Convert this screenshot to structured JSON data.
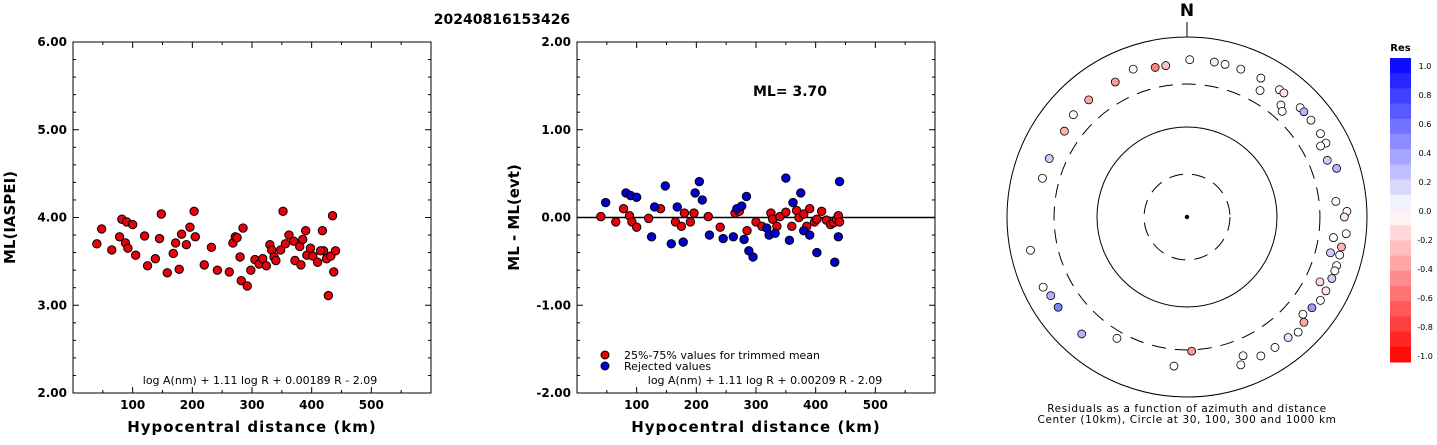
{
  "title": "20240816153426",
  "chart_data": [
    {
      "type": "scatter",
      "ylabel": "ML(IASPEI)",
      "xlabel": "Hypocentral distance (km)",
      "xlim": [
        0,
        600
      ],
      "ylim": [
        2.0,
        6.0
      ],
      "xticks": [
        "100",
        "200",
        "300",
        "400",
        "500"
      ],
      "yticks": [
        "2.00",
        "3.00",
        "4.00",
        "5.00",
        "6.00"
      ],
      "formula": "log A(nm) + 1.11 log R + 0.00189 R - 2.09",
      "series": [
        {
          "color": "#e8000b",
          "points": [
            [
              40,
              3.7
            ],
            [
              48,
              3.87
            ],
            [
              65,
              3.63
            ],
            [
              78,
              3.78
            ],
            [
              82,
              3.98
            ],
            [
              88,
              3.71
            ],
            [
              90,
              3.95
            ],
            [
              92,
              3.65
            ],
            [
              100,
              3.92
            ],
            [
              105,
              3.57
            ],
            [
              120,
              3.79
            ],
            [
              125,
              3.45
            ],
            [
              138,
              3.53
            ],
            [
              145,
              3.76
            ],
            [
              148,
              4.04
            ],
            [
              158,
              3.37
            ],
            [
              168,
              3.59
            ],
            [
              172,
              3.71
            ],
            [
              178,
              3.41
            ],
            [
              182,
              3.81
            ],
            [
              190,
              3.69
            ],
            [
              196,
              3.89
            ],
            [
              203,
              4.07
            ],
            [
              205,
              3.78
            ],
            [
              220,
              3.46
            ],
            [
              232,
              3.66
            ],
            [
              242,
              3.4
            ],
            [
              262,
              3.38
            ],
            [
              268,
              3.71
            ],
            [
              272,
              3.78
            ],
            [
              275,
              3.77
            ],
            [
              280,
              3.55
            ],
            [
              285,
              3.88
            ],
            [
              282,
              3.28
            ],
            [
              292,
              3.22
            ],
            [
              298,
              3.4
            ],
            [
              305,
              3.52
            ],
            [
              312,
              3.47
            ],
            [
              318,
              3.53
            ],
            [
              324,
              3.45
            ],
            [
              330,
              3.69
            ],
            [
              333,
              3.63
            ],
            [
              337,
              3.55
            ],
            [
              340,
              3.51
            ],
            [
              348,
              3.63
            ],
            [
              352,
              4.07
            ],
            [
              356,
              3.7
            ],
            [
              362,
              3.8
            ],
            [
              370,
              3.73
            ],
            [
              372,
              3.51
            ],
            [
              380,
              3.67
            ],
            [
              382,
              3.46
            ],
            [
              385,
              3.75
            ],
            [
              390,
              3.85
            ],
            [
              392,
              3.57
            ],
            [
              398,
              3.65
            ],
            [
              402,
              3.56
            ],
            [
              410,
              3.49
            ],
            [
              418,
              3.85
            ],
            [
              420,
              3.62
            ],
            [
              425,
              3.53
            ],
            [
              428,
              3.11
            ],
            [
              432,
              3.56
            ],
            [
              435,
              4.02
            ],
            [
              437,
              3.38
            ],
            [
              440,
              3.62
            ],
            [
              415,
              3.62
            ]
          ]
        }
      ]
    },
    {
      "type": "scatter",
      "ylabel": "ML - ML(evt)",
      "xlabel": "Hypocentral distance (km)",
      "xlim": [
        0,
        600
      ],
      "ylim": [
        -2.0,
        2.0
      ],
      "xticks": [
        "100",
        "200",
        "300",
        "400",
        "500"
      ],
      "yticks": [
        "-2.00",
        "-1.00",
        "0.00",
        "1.00",
        "2.00"
      ],
      "annotation": "ML= 3.70",
      "formula": "log A(nm) + 1.11 log R + 0.00209 R - 2.09",
      "legend": [
        {
          "label": "25%-75% values for trimmed mean",
          "color": "#e8000b"
        },
        {
          "label": "Rejected values",
          "color": "#0000d0"
        }
      ],
      "series": [
        {
          "name": "25%-75% values for trimmed mean",
          "color": "#e8000b",
          "points": [
            [
              40,
              0.01
            ],
            [
              65,
              -0.05
            ],
            [
              78,
              0.1
            ],
            [
              88,
              0.02
            ],
            [
              92,
              -0.05
            ],
            [
              100,
              -0.11
            ],
            [
              120,
              -0.01
            ],
            [
              140,
              0.1
            ],
            [
              165,
              -0.05
            ],
            [
              175,
              -0.1
            ],
            [
              180,
              0.05
            ],
            [
              190,
              -0.05
            ],
            [
              196,
              0.05
            ],
            [
              220,
              0.01
            ],
            [
              240,
              -0.11
            ],
            [
              265,
              0.05
            ],
            [
              272,
              0.07
            ],
            [
              285,
              -0.15
            ],
            [
              300,
              -0.05
            ],
            [
              310,
              -0.1
            ],
            [
              325,
              0.05
            ],
            [
              328,
              -0.02
            ],
            [
              335,
              -0.1
            ],
            [
              340,
              0.01
            ],
            [
              350,
              0.06
            ],
            [
              360,
              -0.1
            ],
            [
              368,
              0.08
            ],
            [
              372,
              0.0
            ],
            [
              380,
              0.04
            ],
            [
              385,
              -0.1
            ],
            [
              390,
              0.1
            ],
            [
              398,
              -0.05
            ],
            [
              402,
              -0.02
            ],
            [
              410,
              0.07
            ],
            [
              418,
              -0.03
            ],
            [
              425,
              -0.08
            ],
            [
              430,
              -0.06
            ],
            [
              435,
              -0.02
            ],
            [
              438,
              0.02
            ],
            [
              440,
              -0.05
            ]
          ]
        },
        {
          "name": "Rejected values",
          "color": "#0000d0",
          "points": [
            [
              48,
              0.17
            ],
            [
              82,
              0.28
            ],
            [
              90,
              0.25
            ],
            [
              100,
              0.23
            ],
            [
              125,
              -0.22
            ],
            [
              130,
              0.12
            ],
            [
              148,
              0.36
            ],
            [
              158,
              -0.3
            ],
            [
              168,
              0.12
            ],
            [
              178,
              -0.28
            ],
            [
              198,
              0.28
            ],
            [
              205,
              0.41
            ],
            [
              210,
              0.2
            ],
            [
              222,
              -0.2
            ],
            [
              245,
              -0.24
            ],
            [
              262,
              -0.22
            ],
            [
              268,
              0.1
            ],
            [
              276,
              0.13
            ],
            [
              280,
              -0.25
            ],
            [
              284,
              0.24
            ],
            [
              288,
              -0.38
            ],
            [
              295,
              -0.45
            ],
            [
              318,
              -0.12
            ],
            [
              322,
              -0.2
            ],
            [
              332,
              -0.18
            ],
            [
              350,
              0.45
            ],
            [
              356,
              -0.26
            ],
            [
              362,
              0.17
            ],
            [
              375,
              0.28
            ],
            [
              380,
              -0.15
            ],
            [
              390,
              -0.2
            ],
            [
              402,
              -0.4
            ],
            [
              432,
              -0.51
            ],
            [
              438,
              -0.22
            ],
            [
              440,
              0.41
            ]
          ]
        }
      ]
    },
    {
      "type": "scatter",
      "polar": true,
      "north_label": "N",
      "caption": [
        "Residuals as a function of azimuth and distance",
        "Center (10km), Circle at 30, 100, 300 and 1000 km"
      ],
      "points": [
        [
          1,
          0.0
        ],
        [
          10,
          0.05
        ],
        [
          14,
          0.0
        ],
        [
          20,
          0.0
        ],
        [
          28,
          0.0
        ],
        [
          36,
          0.0
        ],
        [
          38,
          -0.1
        ],
        [
          46,
          0.0
        ],
        [
          48,
          0.3
        ],
        [
          52,
          0.0
        ],
        [
          58,
          0.0
        ],
        [
          62,
          0.0
        ],
        [
          72,
          0.3
        ],
        [
          84,
          0.0
        ],
        [
          88,
          0.0
        ],
        [
          90,
          -0.1
        ],
        [
          96,
          0.0
        ],
        [
          101,
          -0.3
        ],
        [
          104,
          0.0
        ],
        [
          108,
          0.0
        ],
        [
          113,
          0.2
        ],
        [
          122,
          0.0
        ],
        [
          126,
          0.4
        ],
        [
          132,
          -0.35
        ],
        [
          140,
          0.1
        ],
        [
          152,
          0.0
        ],
        [
          160,
          0.0
        ],
        [
          178,
          -0.4
        ],
        [
          185,
          0.0
        ],
        [
          210,
          0.0
        ],
        [
          222,
          0.3
        ],
        [
          235,
          0.5
        ],
        [
          240,
          0.3
        ],
        [
          244,
          0.0
        ],
        [
          258,
          0.0
        ],
        [
          285,
          0.0
        ],
        [
          293,
          0.2
        ],
        [
          305,
          -0.3
        ],
        [
          312,
          0.0
        ],
        [
          320,
          -0.35
        ],
        [
          332,
          -0.4
        ],
        [
          340,
          0.0
        ],
        [
          348,
          -0.5
        ],
        [
          352,
          -0.25
        ],
        [
          62,
          0.0
        ],
        [
          68,
          0.2
        ],
        [
          110,
          0.0
        ],
        [
          118,
          -0.1
        ],
        [
          136,
          0.0
        ],
        [
          146,
          0.0
        ],
        [
          98,
          0.0
        ],
        [
          104,
          0.2
        ],
        [
          116,
          -0.15
        ],
        [
          158,
          0.0
        ],
        [
          130,
          0.0
        ],
        [
          40,
          0.0
        ],
        [
          30,
          0.0
        ],
        [
          42,
          0.0
        ]
      ],
      "distances": [
        560,
        560,
        560,
        560,
        560,
        560,
        560,
        560,
        560,
        560,
        560,
        560,
        560,
        460,
        600,
        560,
        600,
        560,
        560,
        560,
        560,
        560,
        520,
        560,
        560,
        560,
        560,
        310,
        460,
        360,
        560,
        560,
        560,
        600,
        600,
        460,
        460,
        460,
        500,
        500,
        500,
        560,
        500,
        500,
        480,
        480,
        560,
        560,
        600,
        560,
        440,
        440,
        440,
        460,
        480,
        420,
        420,
        380
      ],
      "colorbar": {
        "title": "Res",
        "ticks": [
          "1.0",
          "0.8",
          "0.6",
          "0.4",
          "0.2",
          "0.0",
          "-0.2",
          "-0.4",
          "-0.6",
          "-0.8",
          "-1.0"
        ]
      }
    }
  ]
}
